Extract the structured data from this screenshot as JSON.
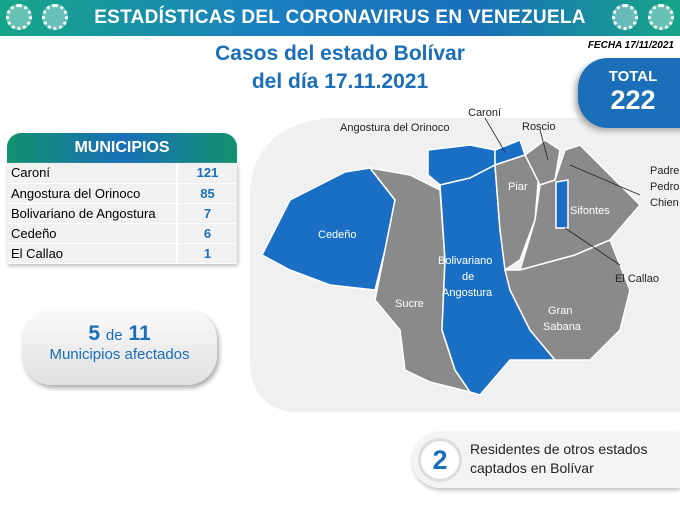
{
  "banner": {
    "title": "ESTADÍSTICAS DEL CORONAVIRUS EN VENEZUELA"
  },
  "header": {
    "line1": "Casos del estado Bolívar",
    "line2": "del día 17.11.2021",
    "fecha": "FECHA 17/11/2021"
  },
  "total": {
    "label": "TOTAL",
    "value": "222"
  },
  "municipios": {
    "title": "MUNICIPIOS",
    "rows": [
      {
        "name": "Caroní",
        "value": "121"
      },
      {
        "name": "Angostura del Orinoco",
        "value": "85"
      },
      {
        "name": "Bolivariano de Angostura",
        "value": "7"
      },
      {
        "name": "Cedeño",
        "value": "6"
      },
      {
        "name": "El Callao",
        "value": "1"
      }
    ]
  },
  "afectados": {
    "count": "5",
    "de": "de",
    "total": "11",
    "label": "Municipios afectados"
  },
  "map": {
    "labels": {
      "angostura": "Angostura del Orinoco",
      "caroni": "Caroní",
      "roscio": "Roscio",
      "padre1": "Padre",
      "padre2": "Pedro",
      "padre3": "Chien",
      "sifontes": "Sifontes",
      "callao": "El Callao",
      "cedeno": "Cedeño",
      "sucre": "Sucre",
      "bol1": "Bolivariano",
      "bol2": "de",
      "bol3": "Angostura",
      "gs1": "Gran",
      "gs2": "Sabana",
      "piar": "Piar"
    },
    "colors": {
      "affected": "#1a6fc4",
      "unaffected": "#8a8a8a"
    }
  },
  "residentes": {
    "count": "2",
    "line1": "Residentes de otros estados",
    "line2": "captados en Bolívar"
  }
}
